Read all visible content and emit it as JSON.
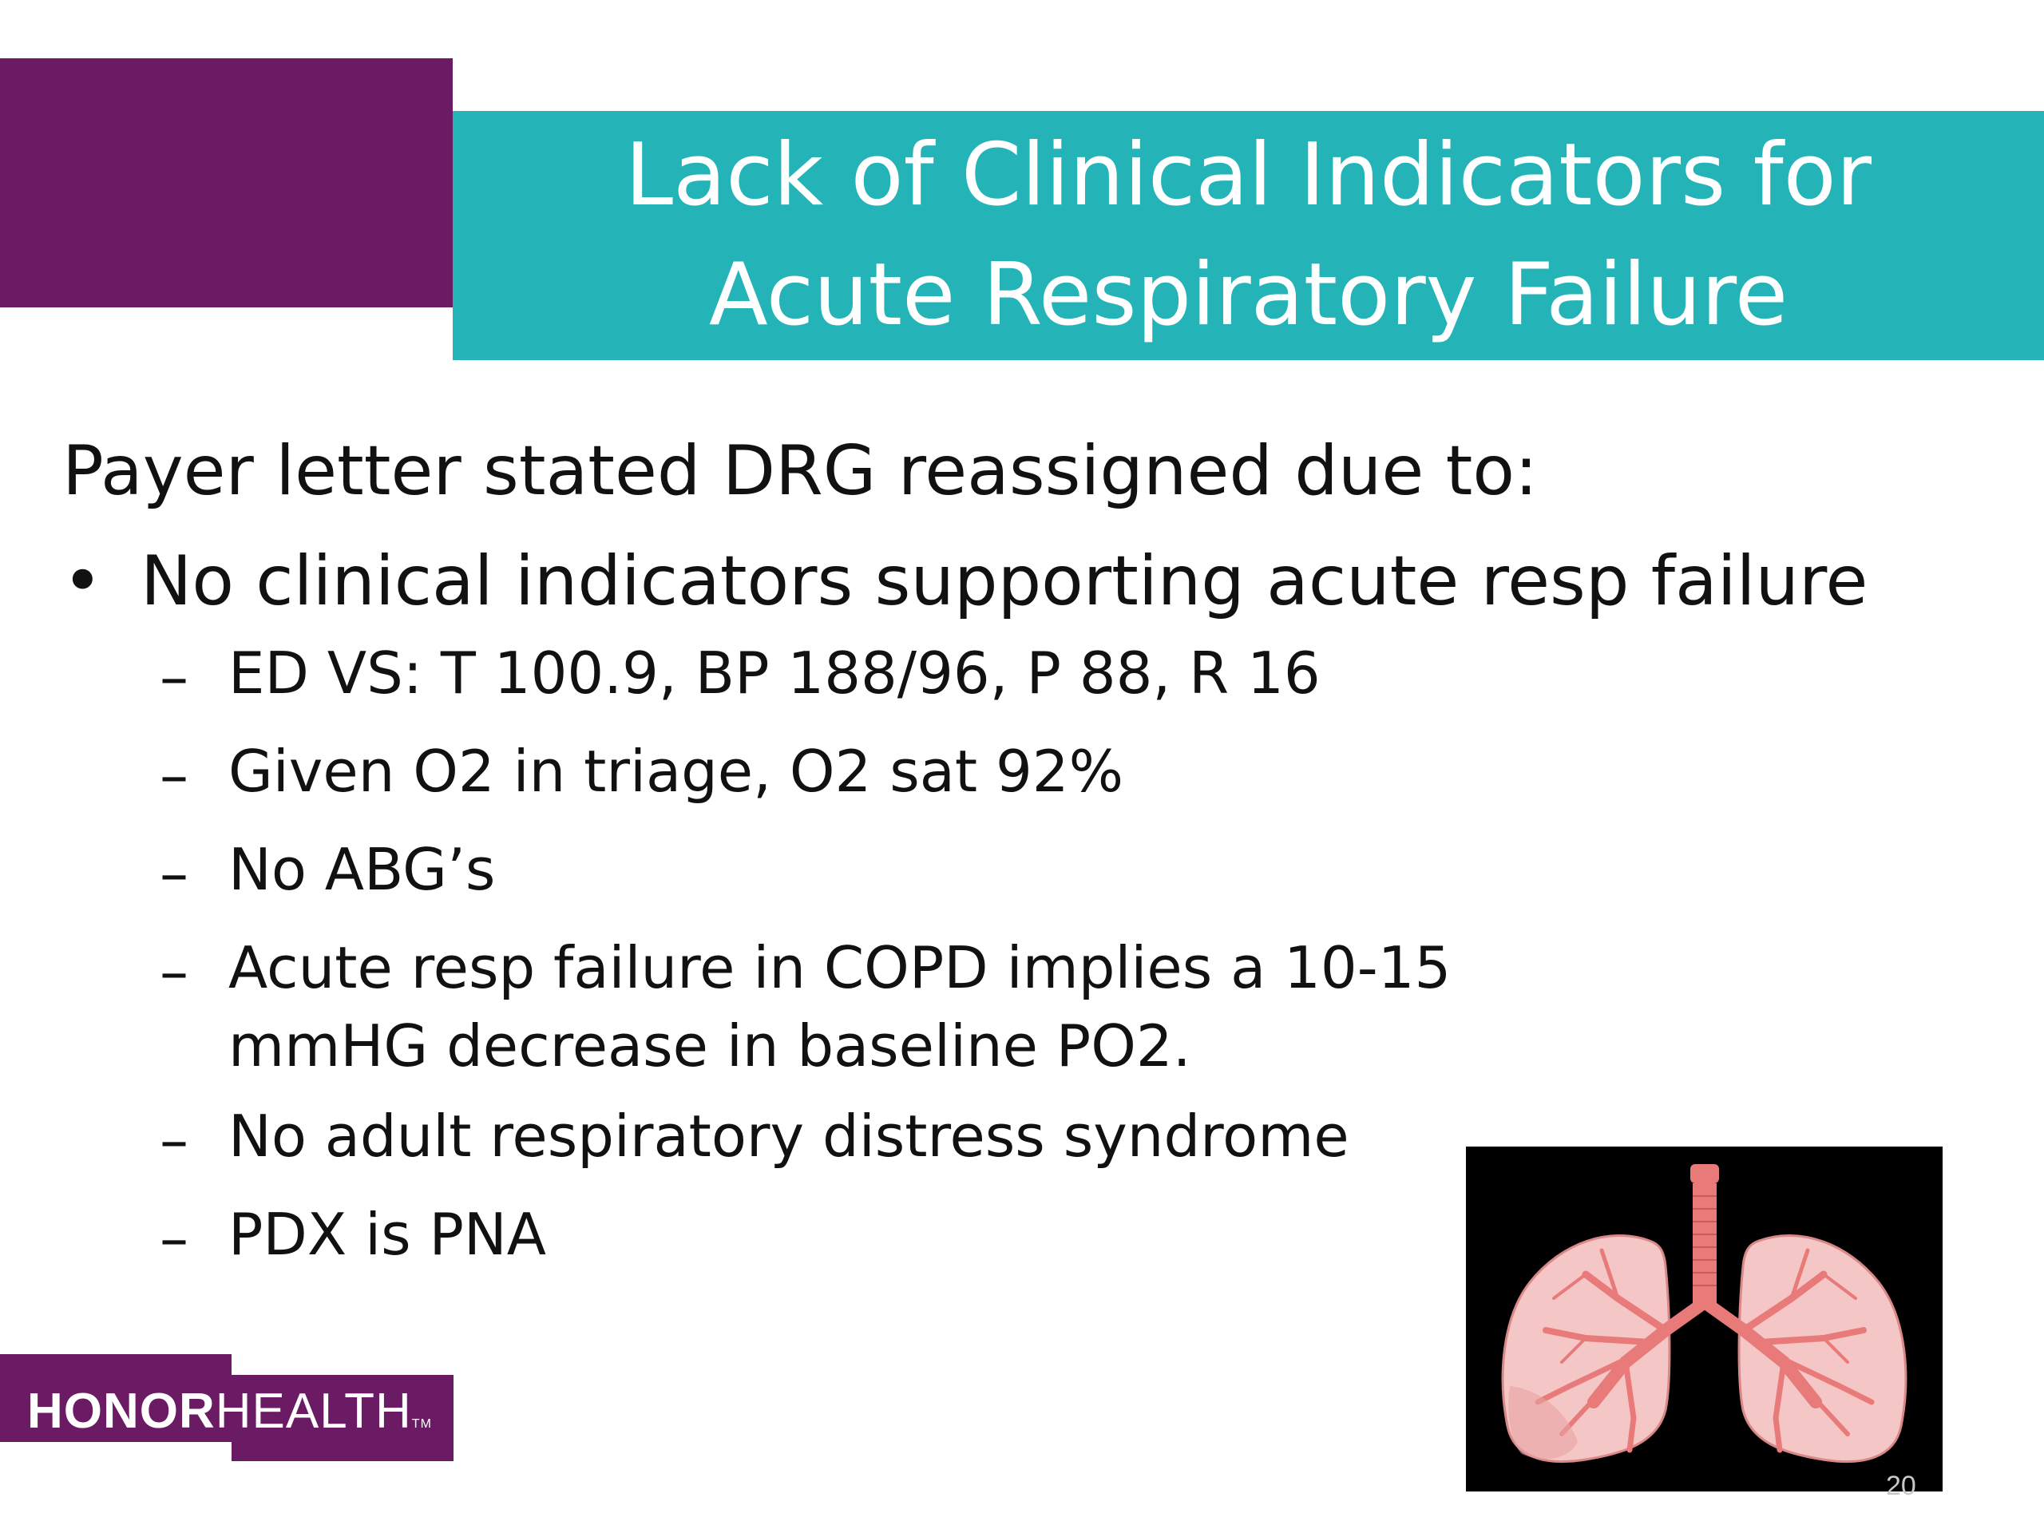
{
  "title": {
    "line1": "Lack of Clinical Indicators for",
    "line2": "Acute Respiratory Failure"
  },
  "intro": "Payer letter stated DRG reassigned due to:",
  "bullet": {
    "marker": "•",
    "text": "No clinical indicators supporting acute resp failure"
  },
  "sub_items": [
    {
      "dash": "–",
      "text": "ED VS: T 100.9, BP 188/96, P 88, R 16"
    },
    {
      "dash": "–",
      "text": "Given O2 in triage, O2 sat 92%"
    },
    {
      "dash": "–",
      "text": "No ABG’s"
    },
    {
      "dash": "–",
      "text": "Acute resp failure in COPD implies a 10-15 mmHG decrease in baseline PO2."
    },
    {
      "dash": "–",
      "text": "No adult respiratory distress syndrome"
    },
    {
      "dash": "–",
      "text": "PDX is PNA"
    }
  ],
  "logo": {
    "bold": "HONOR",
    "light": "HEALTH",
    "tm": "TM"
  },
  "image": {
    "icon": "lungs-icon"
  },
  "page_number": "20",
  "colors": {
    "purple": "#6a1b63",
    "teal": "#24b4b8",
    "lung": "#e87a7a",
    "lung_light": "#f5c6c6"
  }
}
